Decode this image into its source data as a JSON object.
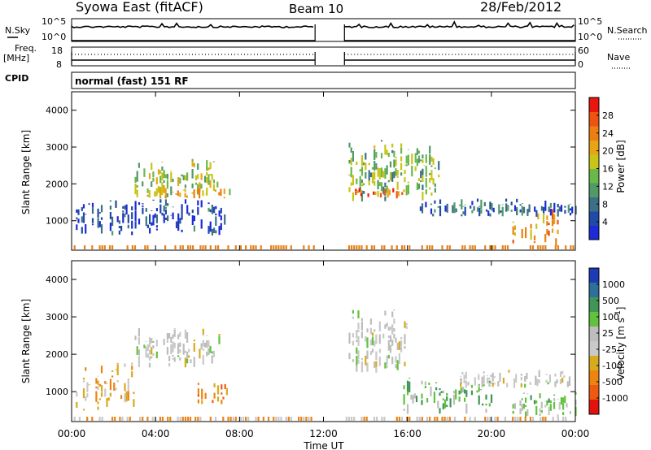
{
  "header": {
    "title": "Syowa East (fitACF)",
    "beam": "Beam 10",
    "date": "28/Feb/2012"
  },
  "top_panels": {
    "nsky_label": "N.Sky",
    "nsky_ticks": [
      "10^5",
      "10^0"
    ],
    "nsearch_label": "N.Search",
    "nsearch_ticks": [
      "10^5",
      "10^0"
    ],
    "freq_label": [
      "Freq.",
      "[MHz]"
    ],
    "freq_ticks": [
      "18",
      "8"
    ],
    "nave_label": "Nave",
    "nave_ticks": [
      "60",
      "0"
    ],
    "cpid_label": "CPID",
    "cpid_value": "normal (fast) 151 RF"
  },
  "colors": {
    "power_scale": [
      "#1c2bd6",
      "#1f4aa8",
      "#3d6f86",
      "#4f9a66",
      "#6bb84a",
      "#c9c418",
      "#e6a416",
      "#ec7f12",
      "#ee5311",
      "#e8160c"
    ],
    "velocity_scale": [
      "#1c3bb4",
      "#2f6f9a",
      "#3f9657",
      "#62c23e",
      "#bdbdbd",
      "#c9c9c9",
      "#d8aa1e",
      "#ed8412",
      "#ef5a12",
      "#e4120c"
    ]
  },
  "chart_data": [
    {
      "type": "heatmap",
      "name": "power",
      "ylabel": "Slant Range [km]",
      "xlabel": "",
      "yticks": [
        "1000",
        "2000",
        "3000",
        "4000"
      ],
      "ylim": [
        200,
        4500
      ],
      "colorbar_label": "Power [dB]",
      "colorbar_ticks": [
        "4",
        "8",
        "12",
        "16",
        "20",
        "24",
        "28"
      ],
      "data_gaps_ut": [
        [
          11.6,
          13.0
        ]
      ],
      "echo_regions": [
        {
          "x": [
            0.2,
            7.6
          ],
          "y": [
            600,
            1600
          ],
          "power_db": 6
        },
        {
          "x": [
            3.0,
            7.0
          ],
          "y": [
            1600,
            2700
          ],
          "power_db": 16
        },
        {
          "x": [
            3.5,
            7.5
          ],
          "y": [
            1600,
            1900
          ],
          "power_db": 20
        },
        {
          "x": [
            13.2,
            17.5
          ],
          "y": [
            1500,
            3200
          ],
          "power_db": 14
        },
        {
          "x": [
            13.5,
            15.8
          ],
          "y": [
            1600,
            1900
          ],
          "power_db": 24
        },
        {
          "x": [
            16.5,
            24.0
          ],
          "y": [
            1100,
            1600
          ],
          "power_db": 8
        },
        {
          "x": [
            21.0,
            23.5
          ],
          "y": [
            300,
            1400
          ],
          "power_db": 22
        }
      ]
    },
    {
      "type": "heatmap",
      "name": "velocity",
      "ylabel": "Slant Range [km]",
      "xlabel": "Time UT",
      "yticks": [
        "1000",
        "2000",
        "3000",
        "4000"
      ],
      "ylim": [
        200,
        4500
      ],
      "xticks": [
        "00:00",
        "04:00",
        "08:00",
        "12:00",
        "16:00",
        "20:00",
        "00:00"
      ],
      "xlim": [
        0,
        24
      ],
      "colorbar_label": "Velocity [m s^-1]",
      "colorbar_ticks": [
        "1000",
        "500",
        "100",
        "25",
        "-25",
        "-100",
        "-500",
        "-1000"
      ],
      "data_gaps_ut": [
        [
          11.6,
          13.0
        ]
      ],
      "echo_regions": [
        {
          "x": [
            0.2,
            3.0
          ],
          "y": [
            400,
            1800
          ],
          "velocity": -300
        },
        {
          "x": [
            3.0,
            7.0
          ],
          "y": [
            1600,
            2700
          ],
          "velocity": 0
        },
        {
          "x": [
            6.0,
            7.5
          ],
          "y": [
            600,
            1300
          ],
          "velocity": -500
        },
        {
          "x": [
            13.2,
            16.0
          ],
          "y": [
            1500,
            3200
          ],
          "velocity": 0
        },
        {
          "x": [
            15.8,
            20.0
          ],
          "y": [
            400,
            1400
          ],
          "velocity": 300
        },
        {
          "x": [
            18.5,
            24.0
          ],
          "y": [
            1100,
            1600
          ],
          "velocity": 0
        },
        {
          "x": [
            21.0,
            24.0
          ],
          "y": [
            300,
            1000
          ],
          "velocity": 200
        }
      ]
    }
  ]
}
